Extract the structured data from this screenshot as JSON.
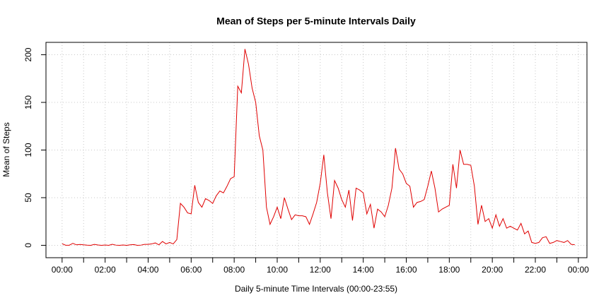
{
  "chart_data": {
    "type": "line",
    "title": "Mean of Steps per 5-minute Intervals Daily",
    "x_label": "Daily 5-minute Time Intervals (00:00-23:55)",
    "y_label": "Mean of Steps",
    "x": [
      0,
      10,
      20,
      30,
      40,
      50,
      60,
      70,
      80,
      90,
      100,
      110,
      120,
      130,
      140,
      150,
      160,
      170,
      180,
      190,
      200,
      210,
      220,
      230,
      240,
      250,
      260,
      270,
      280,
      290,
      300,
      310,
      320,
      330,
      340,
      350,
      360,
      370,
      380,
      390,
      400,
      410,
      420,
      430,
      440,
      450,
      460,
      470,
      480,
      490,
      500,
      510,
      520,
      530,
      540,
      550,
      560,
      570,
      580,
      590,
      600,
      610,
      620,
      630,
      640,
      650,
      660,
      670,
      680,
      690,
      700,
      710,
      720,
      730,
      740,
      750,
      760,
      770,
      780,
      790,
      800,
      810,
      820,
      830,
      840,
      850,
      860,
      870,
      880,
      890,
      900,
      910,
      920,
      930,
      940,
      950,
      960,
      970,
      980,
      990,
      1000,
      1010,
      1020,
      1030,
      1040,
      1050,
      1060,
      1070,
      1080,
      1090,
      1100,
      1110,
      1120,
      1130,
      1140,
      1150,
      1160,
      1170,
      1180,
      1190,
      1200,
      1210,
      1220,
      1230,
      1240,
      1250,
      1260,
      1270,
      1280,
      1290,
      1300,
      1310,
      1320,
      1330,
      1340,
      1350,
      1360,
      1370,
      1380,
      1390,
      1400,
      1410,
      1420,
      1430
    ],
    "series": [
      {
        "name": "Mean of Steps",
        "color": "#e00000",
        "values": [
          1.7,
          0.1,
          0.1,
          2.1,
          0.5,
          0.9,
          0.5,
          0.2,
          0,
          1,
          0.3,
          0,
          0.3,
          0,
          1.1,
          0.2,
          0,
          0.3,
          0,
          0.5,
          0.8,
          0,
          0.2,
          1,
          1,
          1.5,
          2.5,
          0.5,
          4,
          1.5,
          3,
          1.5,
          6,
          44,
          40,
          34,
          33,
          63,
          45,
          40,
          49,
          47,
          44,
          52,
          57,
          55,
          62,
          70,
          72,
          167,
          160,
          206,
          190,
          165,
          150,
          115,
          100,
          40,
          22,
          30,
          40,
          28,
          50,
          38,
          27,
          32,
          31,
          31,
          30,
          22,
          33,
          45,
          65,
          95,
          55,
          28,
          68,
          60,
          48,
          40,
          58,
          26,
          60,
          58,
          55,
          33,
          43,
          18,
          38,
          35,
          30,
          42,
          60,
          102,
          80,
          75,
          65,
          62,
          40,
          45,
          46,
          48,
          62,
          78,
          60,
          35,
          38,
          40,
          42,
          85,
          60,
          100,
          85,
          85,
          84,
          62,
          22,
          42,
          25,
          28,
          18,
          32,
          20,
          28,
          18,
          20,
          18,
          16,
          23,
          12,
          15,
          3,
          2,
          3,
          8,
          9,
          2,
          3,
          5,
          4,
          3,
          5,
          1,
          0.6
        ]
      }
    ],
    "xlim": [
      -45,
      1464
    ],
    "ylim": [
      -13,
      213
    ],
    "xticks": [
      {
        "value": 0,
        "label": "00:00"
      },
      {
        "value": 120,
        "label": "02:00"
      },
      {
        "value": 240,
        "label": "04:00"
      },
      {
        "value": 360,
        "label": "06:00"
      },
      {
        "value": 480,
        "label": "08:00"
      },
      {
        "value": 600,
        "label": "10:00"
      },
      {
        "value": 720,
        "label": "12:00"
      },
      {
        "value": 840,
        "label": "14:00"
      },
      {
        "value": 960,
        "label": "16:00"
      },
      {
        "value": 1080,
        "label": "18:00"
      },
      {
        "value": 1200,
        "label": "20:00"
      },
      {
        "value": 1320,
        "label": "22:00"
      },
      {
        "value": 1440,
        "label": "00:00"
      }
    ],
    "minor_xticks": [
      60,
      180,
      300,
      420,
      540,
      660,
      780,
      900,
      1020,
      1140,
      1260,
      1380
    ],
    "yticks": [
      0,
      50,
      100,
      150,
      200
    ],
    "grid": true
  }
}
